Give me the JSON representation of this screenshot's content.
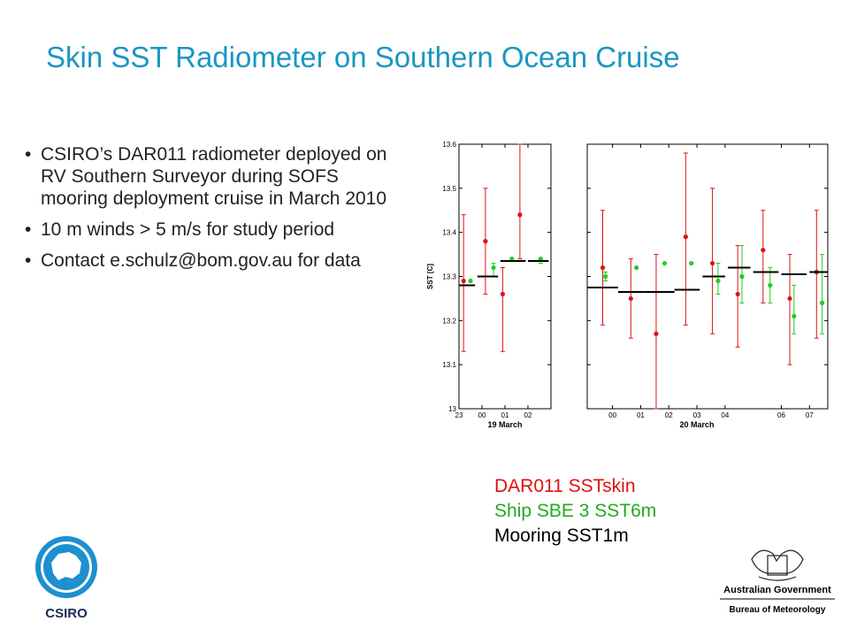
{
  "slide": {
    "title": "Skin SST Radiometer on Southern Ocean Cruise",
    "bullet_symbol": "•",
    "bullets": [
      "CSIRO’s DAR011 radiometer deployed on RV Southern Surveyor during SOFS mooring deployment cruise in March 2010",
      "10 m winds > 5 m/s for study period",
      "Contact e.schulz@bom.gov.au for data"
    ]
  },
  "legend": {
    "radiometer": "DAR011 SSTskin",
    "ship": "Ship SBE 3 SST6m",
    "mooring": "Mooring SST1m"
  },
  "colors": {
    "title": "#1a96c4",
    "radiometer": "#e01010",
    "ship": "#22cc22",
    "mooring": "#000000"
  },
  "logos": {
    "csiro": "CSIRO",
    "gov_line1": "Australian Government",
    "gov_line2": "Bureau of Meteorology"
  },
  "chart_data": [
    {
      "type": "scatter",
      "title": "",
      "ylabel": "SST [C]",
      "xlabel": "19 March",
      "ylim": [
        13.0,
        13.6
      ],
      "yticks": [
        13,
        13.1,
        13.2,
        13.3,
        13.4,
        13.5,
        13.6
      ],
      "xlim": [
        23.0,
        27.0
      ],
      "xticks": [
        23,
        24,
        25,
        26
      ],
      "xticklabels": [
        "23",
        "00",
        "01",
        "02"
      ],
      "series": [
        {
          "key": "radiometer",
          "points": [
            {
              "x": 23.2,
              "y": 13.29,
              "lo": 13.13,
              "hi": 13.44
            },
            {
              "x": 24.15,
              "y": 13.38,
              "lo": 13.26,
              "hi": 13.5
            },
            {
              "x": 24.9,
              "y": 13.26,
              "lo": 13.13,
              "hi": 13.32
            },
            {
              "x": 25.65,
              "y": 13.44,
              "lo": 13.34,
              "hi": 13.6
            }
          ]
        },
        {
          "key": "ship",
          "points": [
            {
              "x": 23.5,
              "y": 13.29,
              "lo": 13.29,
              "hi": 13.29
            },
            {
              "x": 24.5,
              "y": 13.32,
              "lo": 13.3,
              "hi": 13.33
            },
            {
              "x": 25.3,
              "y": 13.34,
              "lo": 13.34,
              "hi": 13.34
            },
            {
              "x": 26.55,
              "y": 13.34,
              "lo": 13.33,
              "hi": 13.34
            }
          ]
        },
        {
          "key": "mooring",
          "segments": [
            {
              "x0": 23.0,
              "x1": 23.7,
              "y": 13.28
            },
            {
              "x0": 23.8,
              "x1": 24.7,
              "y": 13.3
            },
            {
              "x0": 24.8,
              "x1": 25.9,
              "y": 13.335
            },
            {
              "x0": 26.0,
              "x1": 26.9,
              "y": 13.335
            }
          ]
        }
      ]
    },
    {
      "type": "scatter",
      "title": "",
      "ylabel": "",
      "xlabel": "20 March",
      "ylim": [
        13.0,
        13.6
      ],
      "xlim": [
        -0.9,
        7.65
      ],
      "xticks": [
        0,
        1,
        2,
        3,
        4,
        6,
        7
      ],
      "xticklabels": [
        "00",
        "01",
        "02",
        "03",
        "04",
        "06",
        "07"
      ],
      "series": [
        {
          "key": "radiometer",
          "points": [
            {
              "x": -0.35,
              "y": 13.32,
              "lo": 13.19,
              "hi": 13.45
            },
            {
              "x": 0.65,
              "y": 13.25,
              "lo": 13.16,
              "hi": 13.34
            },
            {
              "x": 1.55,
              "y": 13.17,
              "lo": 13.0,
              "hi": 13.35
            },
            {
              "x": 2.6,
              "y": 13.39,
              "lo": 13.19,
              "hi": 13.58
            },
            {
              "x": 3.55,
              "y": 13.33,
              "lo": 13.17,
              "hi": 13.5
            },
            {
              "x": 4.45,
              "y": 13.26,
              "lo": 13.14,
              "hi": 13.37
            },
            {
              "x": 5.35,
              "y": 13.36,
              "lo": 13.24,
              "hi": 13.45
            },
            {
              "x": 6.3,
              "y": 13.25,
              "lo": 13.1,
              "hi": 13.35
            },
            {
              "x": 7.25,
              "y": 13.31,
              "lo": 13.16,
              "hi": 13.45
            }
          ]
        },
        {
          "key": "ship",
          "points": [
            {
              "x": -0.25,
              "y": 13.3,
              "lo": 13.29,
              "hi": 13.31
            },
            {
              "x": 0.85,
              "y": 13.32,
              "lo": 13.32,
              "hi": 13.32
            },
            {
              "x": 1.85,
              "y": 13.33,
              "lo": 13.33,
              "hi": 13.33
            },
            {
              "x": 2.8,
              "y": 13.33,
              "lo": 13.33,
              "hi": 13.33
            },
            {
              "x": 3.75,
              "y": 13.29,
              "lo": 13.26,
              "hi": 13.33
            },
            {
              "x": 4.6,
              "y": 13.3,
              "lo": 13.24,
              "hi": 13.37
            },
            {
              "x": 5.6,
              "y": 13.28,
              "lo": 13.24,
              "hi": 13.32
            },
            {
              "x": 6.45,
              "y": 13.21,
              "lo": 13.17,
              "hi": 13.28
            },
            {
              "x": 7.45,
              "y": 13.24,
              "lo": 13.17,
              "hi": 13.35
            }
          ]
        },
        {
          "key": "mooring",
          "segments": [
            {
              "x0": -0.9,
              "x1": 0.2,
              "y": 13.275
            },
            {
              "x0": 0.2,
              "x1": 1.1,
              "y": 13.265
            },
            {
              "x0": 1.1,
              "x1": 2.2,
              "y": 13.265
            },
            {
              "x0": 2.2,
              "x1": 3.1,
              "y": 13.27
            },
            {
              "x0": 3.2,
              "x1": 4.0,
              "y": 13.3
            },
            {
              "x0": 4.1,
              "x1": 4.9,
              "y": 13.32
            },
            {
              "x0": 5.0,
              "x1": 5.9,
              "y": 13.31
            },
            {
              "x0": 6.0,
              "x1": 6.9,
              "y": 13.305
            },
            {
              "x0": 7.0,
              "x1": 7.65,
              "y": 13.31
            }
          ]
        }
      ]
    }
  ]
}
